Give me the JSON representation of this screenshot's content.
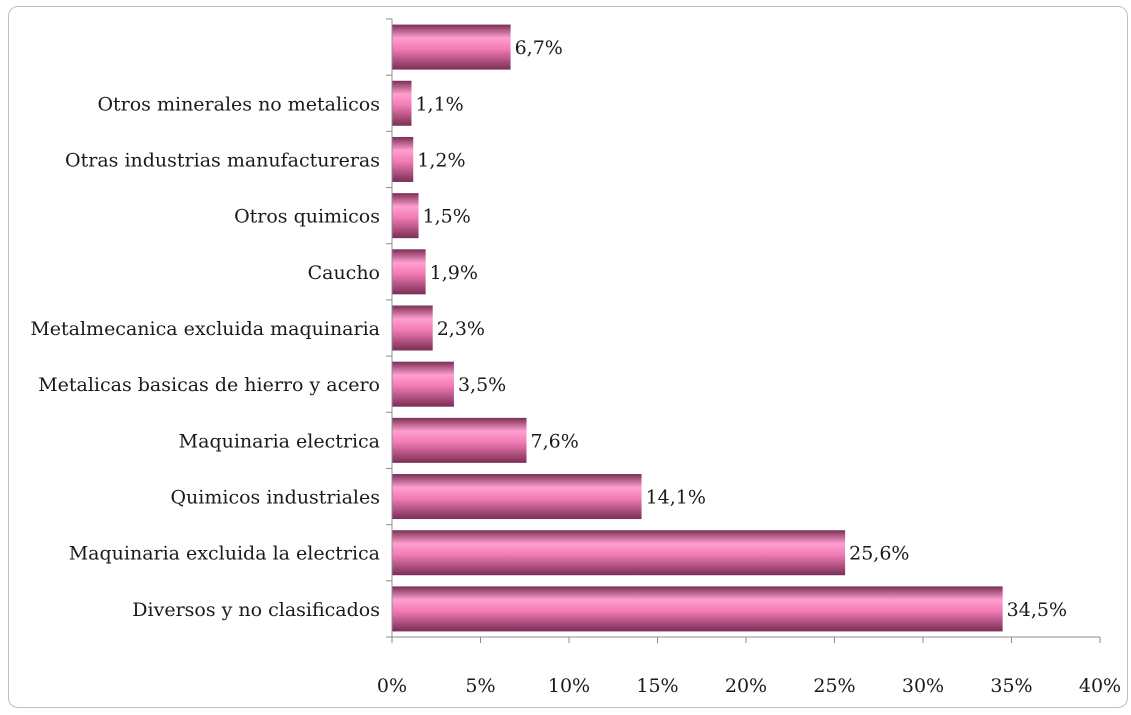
{
  "chart_data": {
    "type": "bar",
    "orientation": "horizontal",
    "categories": [
      "Diversos y no clasificados",
      "Maquinaria excluida la electrica",
      "Quimicos industriales",
      "Maquinaria electrica",
      "Metalicas basicas de hierro y acero",
      "Metalmecanica excluida maquinaria",
      "Caucho",
      "Otros quimicos",
      "Otras industrias manufactureras",
      "Otros minerales no metalicos",
      ""
    ],
    "values": [
      34.5,
      25.6,
      14.1,
      7.6,
      3.5,
      2.3,
      1.9,
      1.5,
      1.2,
      1.1,
      6.7
    ],
    "data_labels": [
      "34,5%",
      "25,6%",
      "14,1%",
      "7,6%",
      "3,5%",
      "2,3%",
      "1,9%",
      "1,5%",
      "1,2%",
      "1,1%",
      "6,7%"
    ],
    "x_ticks": [
      0,
      5,
      10,
      15,
      20,
      25,
      30,
      35,
      40
    ],
    "x_tick_labels": [
      "0%",
      "5%",
      "10%",
      "15%",
      "20%",
      "25%",
      "30%",
      "35%",
      "40%"
    ],
    "xlim": [
      0,
      40
    ],
    "title": "",
    "xlabel": "",
    "ylabel": "",
    "grid": false,
    "legend": "none",
    "colors": {
      "bar_light": "#ff9fcf",
      "bar_mid": "#f07ab4",
      "bar_dark": "#7a2e55",
      "axis": "#8c8c8c",
      "frame": "#bfbfbf"
    }
  }
}
